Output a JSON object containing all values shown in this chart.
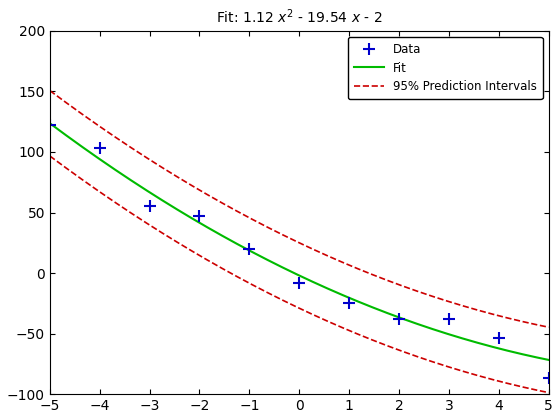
{
  "title": "Fit: 1.12 x² - 19.54 x - 2",
  "a": 1.12,
  "b": -19.54,
  "c": -2,
  "xlim": [
    -5,
    5
  ],
  "ylim": [
    -100,
    200
  ],
  "xticks": [
    -5,
    -4,
    -3,
    -2,
    -1,
    0,
    1,
    2,
    3,
    4,
    5
  ],
  "yticks": [
    -100,
    -50,
    0,
    50,
    100,
    150,
    200
  ],
  "data_x": [
    -5,
    -4,
    -3,
    -2,
    -1,
    0,
    1,
    2,
    3,
    4,
    5
  ],
  "data_y": [
    122,
    103,
    55,
    47,
    20,
    -8,
    -25,
    -38,
    -38,
    -54,
    -87
  ],
  "fit_color": "#00bb00",
  "pi_color": "#cc0000",
  "data_color": "#0000cc",
  "pi_upper_offset": [
    27,
    27,
    27,
    27,
    27,
    27,
    27,
    27,
    27,
    27,
    27
  ],
  "pi_lower_offset": [
    27,
    27,
    27,
    27,
    27,
    27,
    27,
    27,
    27,
    27,
    27
  ],
  "background_color": "#ffffff",
  "legend_labels": [
    "Data",
    "Fit",
    "95% Prediction Intervals"
  ],
  "figsize": [
    5.6,
    4.2
  ],
  "dpi": 100
}
